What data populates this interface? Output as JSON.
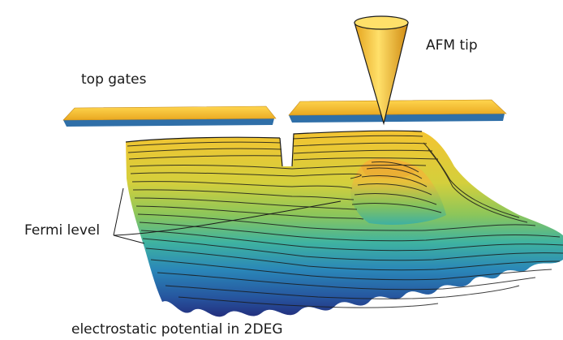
{
  "labels": {
    "top_gates": "top gates",
    "afm_tip": "AFM tip",
    "fermi_level": "Fermi level",
    "caption": "electrostatic potential in 2DEG"
  },
  "colors": {
    "gate_top": "#f7c232",
    "gate_side": "#2f6fa8",
    "tip_fill": "#f4c230",
    "surface_high": "#f0c53a",
    "surface_mid": "#6fbf6a",
    "surface_low": "#2a3f8f",
    "contour": "#1a1a1a"
  }
}
